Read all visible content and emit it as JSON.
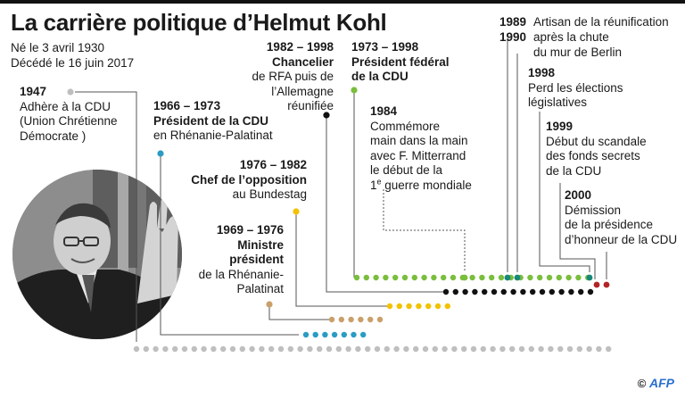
{
  "title": "La carrière politique d’Helmut Kohl",
  "born": "Né le 3 avril 1930",
  "died": "Décédé le 16 juin 2017",
  "events": {
    "e1947": {
      "year": "1947",
      "l1": "Adhère à la CDU",
      "l2": "(Union Chrétienne",
      "l3": "Démocrate )"
    },
    "e1966": {
      "year": "1966 – 1973",
      "l1": "Président de la CDU",
      "l2": "en Rhénanie-Palatinat"
    },
    "e1976": {
      "year": "1976 – 1982",
      "l1": "Chef de l’opposition",
      "l2": "au Bundestag"
    },
    "e1969": {
      "year": "1969 – 1976",
      "l1": "Ministre",
      "l2": "président",
      "l3": "de la Rhénanie-",
      "l4": "Palatinat"
    },
    "e1982": {
      "year": "1982 – 1998",
      "l1": "Chancelier",
      "l2": "de RFA puis de",
      "l3": "l’Allemagne",
      "l4": "réunifiée"
    },
    "e1973": {
      "year": "1973 – 1998",
      "l1": "Président fédéral",
      "l2": "de la CDU"
    },
    "e1984": {
      "year": "1984",
      "l1": "Commémore",
      "l2": "main dans la main",
      "l3": "avec F. Mitterrand",
      "l4": "le début de la",
      "l5a": "1",
      "l5sup": "e",
      "l5b": " guerre mondiale"
    },
    "e1989": {
      "year1": "1989",
      "year2": "1990",
      "l1": "Artisan de la réunification",
      "l2": "après la chute",
      "l3": "du mur de Berlin"
    },
    "e1998": {
      "year": "1998",
      "l1": "Perd les élections",
      "l2": "législatives"
    },
    "e1999": {
      "year": "1999",
      "l1": "Début du scandale",
      "l2": "des fonds secrets",
      "l3": "de la CDU"
    },
    "e2000": {
      "year": "2000",
      "l1": "Démission",
      "l2": "de la présidence",
      "l3": "d’honneur de la CDU"
    }
  },
  "credit": {
    "symbol": "©",
    "agency": "AFP"
  },
  "colors": {
    "grey": "#bfbfbf",
    "blue": "#2a9cc4",
    "tan": "#c9a06a",
    "yellow": "#f2c200",
    "black": "#111111",
    "green": "#79be3c",
    "teal": "#16887a",
    "red": "#b32424",
    "line": "#555555"
  }
}
